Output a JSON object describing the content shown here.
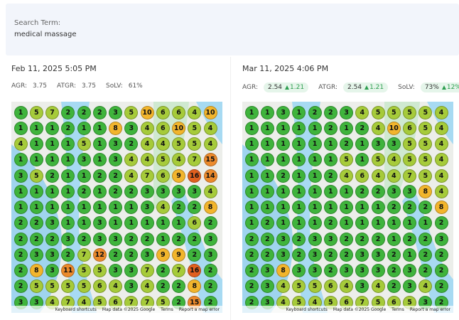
{
  "search": {
    "label": "Search Term:",
    "term": "medical massage"
  },
  "panels": [
    {
      "date": "Feb 11, 2025 5:05 PM",
      "metrics": [
        {
          "name": "AGR:",
          "value": "3.75"
        },
        {
          "name": "ATGR:",
          "value": "3.75"
        },
        {
          "name": "SoLV:",
          "value": "61%"
        }
      ],
      "grid": [
        [
          1,
          5,
          7,
          2,
          2,
          2,
          3,
          5,
          10,
          6,
          6,
          4,
          10
        ],
        [
          1,
          1,
          1,
          2,
          1,
          1,
          8,
          3,
          4,
          6,
          10,
          5,
          4
        ],
        [
          4,
          1,
          1,
          1,
          5,
          1,
          3,
          2,
          4,
          4,
          5,
          5,
          4
        ],
        [
          1,
          1,
          1,
          1,
          3,
          1,
          3,
          4,
          4,
          5,
          4,
          7,
          15
        ],
        [
          3,
          5,
          2,
          1,
          1,
          2,
          2,
          4,
          7,
          6,
          9,
          16,
          14
        ],
        [
          1,
          1,
          1,
          1,
          2,
          1,
          2,
          2,
          3,
          3,
          3,
          3,
          4
        ],
        [
          1,
          1,
          1,
          1,
          1,
          1,
          1,
          1,
          3,
          4,
          2,
          2,
          8
        ],
        [
          2,
          2,
          3,
          1,
          1,
          3,
          1,
          1,
          1,
          1,
          1,
          6,
          2
        ],
        [
          2,
          2,
          2,
          3,
          2,
          3,
          3,
          2,
          2,
          1,
          2,
          2,
          3
        ],
        [
          2,
          3,
          3,
          2,
          7,
          12,
          2,
          2,
          3,
          9,
          9,
          2,
          3
        ],
        [
          2,
          8,
          3,
          11,
          5,
          5,
          3,
          3,
          7,
          2,
          7,
          16,
          2
        ],
        [
          2,
          5,
          5,
          5,
          5,
          6,
          4,
          3,
          4,
          2,
          2,
          8,
          2
        ],
        [
          3,
          3,
          4,
          7,
          4,
          5,
          6,
          7,
          7,
          5,
          2,
          15,
          2
        ]
      ],
      "footer": [
        "Keyboard shortcuts",
        "Map data ©2025 Google",
        "Terms",
        "Report a map error"
      ]
    },
    {
      "date": "Mar 11, 2025 4:06 PM",
      "metrics": [
        {
          "name": "AGR:",
          "value": "2.54",
          "delta": "1.21"
        },
        {
          "name": "ATGR:",
          "value": "2.54",
          "delta": "1.21"
        },
        {
          "name": "SoLV:",
          "value": "73%",
          "delta": "12%"
        }
      ],
      "grid": [
        [
          1,
          1,
          3,
          1,
          2,
          2,
          3,
          4,
          5,
          5,
          5,
          5,
          4
        ],
        [
          1,
          1,
          1,
          1,
          1,
          2,
          1,
          2,
          4,
          10,
          6,
          5,
          4
        ],
        [
          1,
          1,
          1,
          1,
          1,
          1,
          2,
          1,
          3,
          3,
          5,
          5,
          4
        ],
        [
          1,
          1,
          1,
          1,
          1,
          1,
          5,
          1,
          5,
          4,
          5,
          5,
          4
        ],
        [
          1,
          1,
          2,
          1,
          1,
          2,
          4,
          6,
          4,
          4,
          7,
          5,
          4
        ],
        [
          1,
          1,
          1,
          1,
          1,
          1,
          1,
          2,
          2,
          3,
          3,
          8,
          4
        ],
        [
          1,
          1,
          1,
          1,
          1,
          1,
          1,
          1,
          1,
          2,
          2,
          2,
          8
        ],
        [
          1,
          2,
          1,
          1,
          1,
          2,
          1,
          1,
          1,
          1,
          1,
          1,
          2
        ],
        [
          2,
          2,
          3,
          2,
          3,
          3,
          2,
          2,
          2,
          1,
          2,
          2,
          3
        ],
        [
          2,
          2,
          3,
          2,
          3,
          2,
          2,
          3,
          3,
          2,
          1,
          2,
          2
        ],
        [
          2,
          3,
          8,
          3,
          3,
          2,
          3,
          3,
          3,
          2,
          3,
          2,
          2
        ],
        [
          2,
          3,
          4,
          5,
          5,
          6,
          4,
          3,
          4,
          2,
          3,
          4,
          2
        ],
        [
          2,
          3,
          4,
          5,
          4,
          5,
          6,
          7,
          5,
          6,
          5,
          3,
          2
        ]
      ],
      "footer": [
        "Keyboard shortcuts",
        "Map data ©2025 Google",
        "Terms",
        "Report a map error"
      ]
    }
  ]
}
